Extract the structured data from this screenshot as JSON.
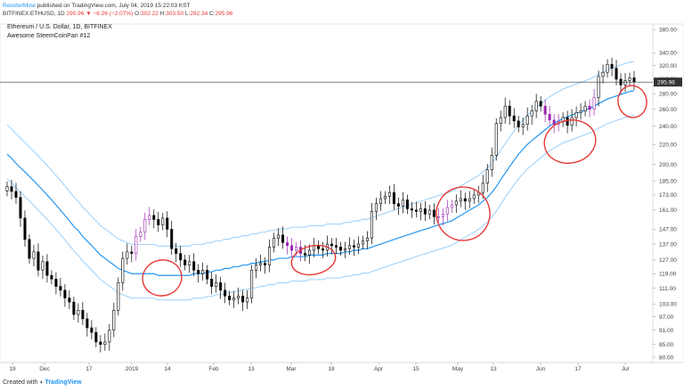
{
  "header": {
    "author": "RoosterMine",
    "published": "published on TradingView.com, July 04, 2019 15:22:03 KST"
  },
  "ohlc": {
    "symbol": "BITFINEX:ETHUSD, 1D",
    "close_text": "295.96",
    "change_text": "▼ −6.26 (−2.07%)",
    "o_label": "O:",
    "o": "302.22",
    "h_label": "H:",
    "h": "303.50",
    "l_label": "L:",
    "l": "292.34",
    "c_label": "C:",
    "c": "295.96"
  },
  "chart_title": "Ethereum / U.S. Dollar, 1D, BITFINEX",
  "indicator": "Awesome SteemCoinPan #12",
  "footer": {
    "created_with": "Created with",
    "brand": "TradingView"
  },
  "colors": {
    "candle": "#000000",
    "up_fill": "#ffffff",
    "ma_main": "#2196f3",
    "ma_band": "#90caf9",
    "annotation": "#e53935",
    "highlight_candle": "#9c27b0",
    "price_line": "#333333"
  },
  "chart_data": {
    "type": "candlestick",
    "scale": "log",
    "ylim": [
      78,
      390
    ],
    "y_ticks": [
      80,
      85,
      91,
      97,
      103,
      111,
      119,
      127,
      137,
      147,
      161,
      173,
      185,
      200,
      220,
      240,
      260,
      280,
      300,
      320,
      340,
      380
    ],
    "x_ticks": [
      "19",
      "Dec",
      "17",
      "2019",
      "14",
      "Feb",
      "13",
      "Mar",
      "18",
      "Apr",
      "15",
      "May",
      "13",
      "Jun",
      "17",
      "Jul"
    ],
    "last_price": 295.96,
    "close": [
      180,
      176,
      171,
      155,
      140,
      128,
      132,
      121,
      126,
      118,
      116,
      112,
      110,
      106,
      104,
      98,
      100,
      96,
      92,
      90,
      86,
      85,
      86,
      91,
      100,
      114,
      128,
      132,
      131,
      142,
      145,
      154,
      157,
      154,
      150,
      155,
      147,
      134,
      131,
      127,
      124,
      126,
      121,
      119,
      121,
      116,
      112,
      114,
      110,
      107,
      105,
      106,
      107,
      104,
      106,
      121,
      124,
      125,
      124,
      135,
      141,
      143,
      138,
      136,
      133,
      135,
      131,
      130,
      133,
      136,
      134,
      133,
      137,
      136,
      135,
      133,
      134,
      136,
      135,
      137,
      139,
      141,
      160,
      166,
      170,
      172,
      175,
      166,
      164,
      169,
      162,
      161,
      160,
      162,
      158,
      161,
      156,
      156,
      158,
      163,
      165,
      168,
      170,
      168,
      170,
      173,
      175,
      183,
      195,
      209,
      243,
      250,
      264,
      252,
      246,
      239,
      242,
      252,
      258,
      270,
      264,
      254,
      247,
      242,
      245,
      250,
      241,
      250,
      256,
      258,
      264,
      260,
      275,
      304,
      310,
      322,
      316,
      300,
      292,
      298,
      302,
      296
    ],
    "ma_main": [
      210,
      206,
      201,
      197,
      193,
      189,
      185,
      181,
      177,
      173,
      169,
      165,
      161,
      157,
      153,
      149,
      146,
      142,
      139,
      136,
      133,
      130,
      128,
      126,
      124,
      122,
      121,
      120,
      119,
      119,
      119,
      119,
      119,
      119,
      118,
      118,
      118,
      118,
      118,
      118,
      118,
      118,
      119,
      119,
      119,
      120,
      120,
      121,
      121,
      122,
      122,
      123,
      123,
      124,
      124,
      125,
      125,
      126,
      126,
      127,
      127,
      128,
      128,
      128,
      129,
      129,
      129,
      129,
      130,
      130,
      130,
      130,
      131,
      131,
      131,
      131,
      132,
      132,
      133,
      133,
      134,
      134,
      135,
      136,
      137,
      138,
      139,
      140,
      141,
      142,
      143,
      144,
      145,
      146,
      147,
      148,
      149,
      150,
      151,
      152,
      153,
      155,
      157,
      159,
      161,
      163,
      165,
      168,
      171,
      175,
      180,
      186,
      192,
      198,
      204,
      210,
      215,
      220,
      224,
      228,
      232,
      236,
      240,
      243,
      246,
      249,
      251,
      253,
      255,
      257,
      259,
      261,
      264,
      267,
      270,
      273,
      275,
      277,
      279,
      281,
      283,
      284
    ]
  }
}
